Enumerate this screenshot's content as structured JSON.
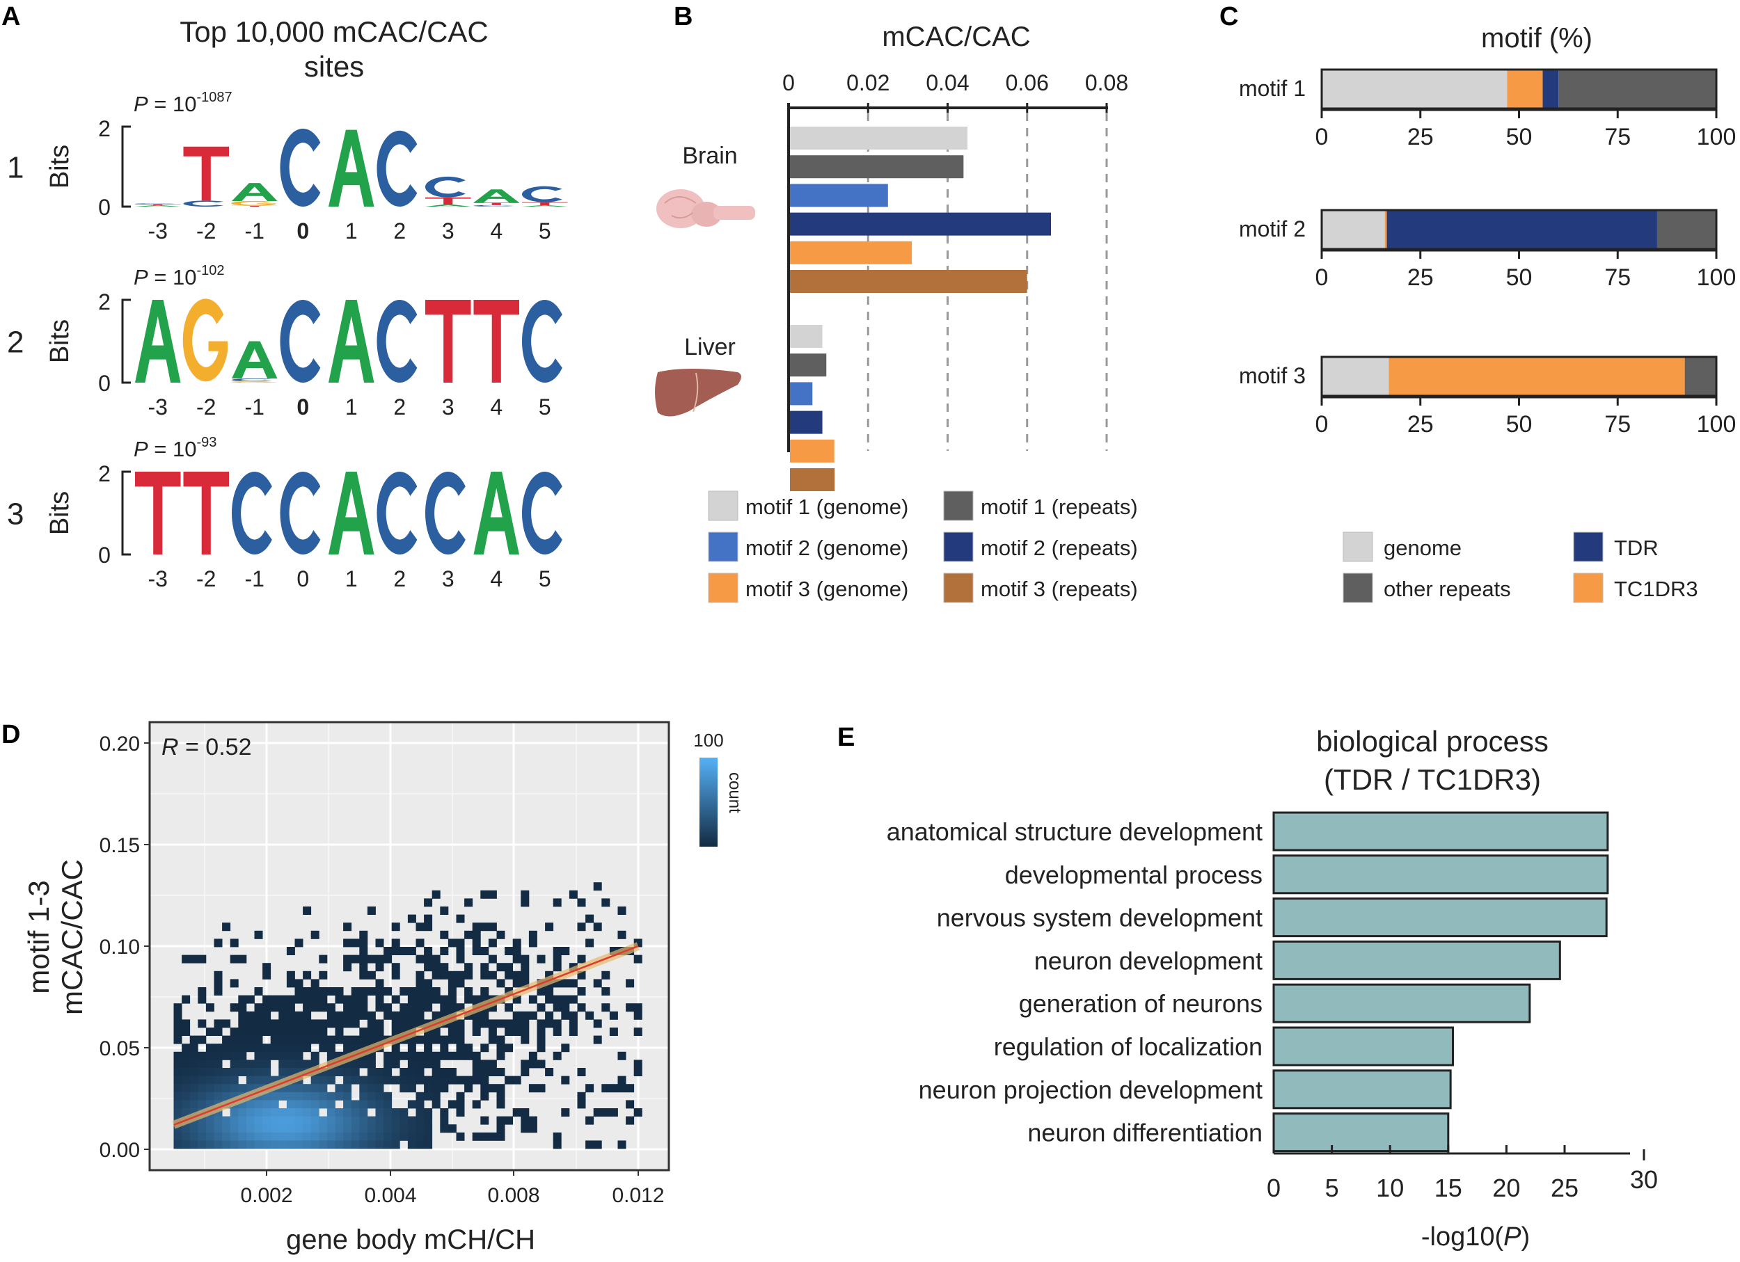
{
  "panel_labels": {
    "A": "A",
    "B": "B",
    "C": "C",
    "D": "D",
    "E": "E"
  },
  "colors": {
    "A": "#22a24a",
    "C": "#2b5fa0",
    "G": "#f2ae2c",
    "T": "#d92a3a",
    "motif1_genome": "#d3d3d3",
    "motif1_repeats": "#5f5f5f",
    "motif2_genome": "#4472c4",
    "motif2_repeats": "#233b7d",
    "motif3_genome": "#f79a46",
    "motif3_repeats": "#b2703a",
    "genome": "#d3d3d3",
    "other_repeats": "#5f5f5f",
    "TDR": "#233b7d",
    "TC1DR3": "#f79a46",
    "go_bar": "#91babd",
    "heat_low": "#132b43",
    "heat_high": "#56b1f7",
    "fit_line": "#e03a2f",
    "fit_band": "#e8b86a"
  },
  "chart_data": [
    {
      "panel": "A",
      "type": "sequence-logo",
      "title_line1": "Top 10,000 mCAC/CAC",
      "title_line2": "sites",
      "ylabel": "Bits",
      "yticks": [
        "0",
        "2"
      ],
      "ylim": [
        0,
        2
      ],
      "positions": [
        "-3",
        "-2",
        "-1",
        "0",
        "1",
        "2",
        "3",
        "4",
        "5"
      ],
      "motifs": [
        {
          "id": "1",
          "p_prefix": "P",
          "p_eq": " = 10",
          "p_exp": "-1087",
          "bold_zero": true,
          "stacks": [
            [
              [
                "A",
                0.03
              ],
              [
                "T",
                0.03
              ],
              [
                "C",
                0.02
              ]
            ],
            [
              [
                "C",
                0.15
              ]
            ],
            [
              [
                "T",
                0.02
              ],
              [
                "G",
                0.12
              ],
              [
                "A",
                0.45
              ]
            ],
            [
              [
                "C",
                1.95
              ]
            ],
            [
              [
                "A",
                1.92
              ]
            ],
            [
              [
                "C",
                1.9
              ]
            ],
            [
              [
                "A",
                0.05
              ],
              [
                "T",
                0.18
              ],
              [
                "C",
                0.52
              ]
            ],
            [
              [
                "C",
                0.04
              ],
              [
                "T",
                0.06
              ],
              [
                "A",
                0.33
              ]
            ],
            [
              [
                "A",
                0.03
              ],
              [
                "T",
                0.08
              ],
              [
                "C",
                0.4
              ]
            ]
          ],
          "top_T_at": 1,
          "top_T_bits": 1.35
        },
        {
          "id": "2",
          "p_prefix": "P",
          "p_eq": " = 10",
          "p_exp": "-102",
          "bold_zero": true,
          "stacks": [
            [
              [
                "A",
                2
              ]
            ],
            [
              [
                "G",
                2
              ]
            ],
            [
              [
                "G",
                0.03
              ],
              [
                "C",
                0.07
              ],
              [
                "A",
                0.9
              ]
            ],
            [
              [
                "C",
                2
              ]
            ],
            [
              [
                "A",
                2
              ]
            ],
            [
              [
                "C",
                2
              ]
            ],
            [
              [
                "T",
                2
              ]
            ],
            [
              [
                "T",
                2
              ]
            ],
            [
              [
                "C",
                2
              ]
            ]
          ]
        },
        {
          "id": "3",
          "p_prefix": "P",
          "p_eq": " = 10",
          "p_exp": "-93",
          "bold_zero": false,
          "stacks": [
            [
              [
                "T",
                2
              ]
            ],
            [
              [
                "T",
                2
              ]
            ],
            [
              [
                "C",
                2
              ]
            ],
            [
              [
                "C",
                2
              ]
            ],
            [
              [
                "A",
                2
              ]
            ],
            [
              [
                "C",
                2
              ]
            ],
            [
              [
                "C",
                2
              ]
            ],
            [
              [
                "A",
                2
              ]
            ],
            [
              [
                "C",
                2
              ]
            ]
          ]
        }
      ]
    },
    {
      "panel": "B",
      "type": "bar",
      "title": "mCAC/CAC",
      "xticks": [
        "0",
        "0.02",
        "0.04",
        "0.06",
        "0.08"
      ],
      "xlim": [
        0,
        0.08
      ],
      "groups": [
        {
          "name": "Brain",
          "values": [
            0.045,
            0.044,
            0.025,
            0.066,
            0.031,
            0.06
          ]
        },
        {
          "name": "Liver",
          "values": [
            0.0085,
            0.0095,
            0.006,
            0.0085,
            0.0115,
            0.0116
          ]
        }
      ],
      "series": [
        {
          "name": "motif 1 (genome)",
          "color_key": "motif1_genome"
        },
        {
          "name": "motif 1 (repeats)",
          "color_key": "motif1_repeats"
        },
        {
          "name": "motif 2 (genome)",
          "color_key": "motif2_genome"
        },
        {
          "name": "motif 2 (repeats)",
          "color_key": "motif2_repeats"
        },
        {
          "name": "motif 3 (genome)",
          "color_key": "motif3_genome"
        },
        {
          "name": "motif 3 (repeats)",
          "color_key": "motif3_repeats"
        }
      ],
      "grid": "dashed vertical",
      "legend_placement": "bottom"
    },
    {
      "panel": "C",
      "type": "bar",
      "stacked": true,
      "title": "motif (%)",
      "categories": [
        "motif 1",
        "motif 2",
        "motif 3"
      ],
      "xticks": [
        "0",
        "25",
        "50",
        "75",
        "100"
      ],
      "xlim": [
        0,
        100
      ],
      "segments": [
        [
          [
            "genome",
            47
          ],
          [
            "TC1DR3",
            9
          ],
          [
            "TDR",
            4
          ],
          [
            "other_repeats",
            40
          ]
        ],
        [
          [
            "genome",
            16
          ],
          [
            "TC1DR3",
            0.5
          ],
          [
            "TDR",
            68.5
          ],
          [
            "other_repeats",
            15
          ]
        ],
        [
          [
            "genome",
            17
          ],
          [
            "TC1DR3",
            75
          ],
          [
            "other_repeats",
            8
          ]
        ]
      ],
      "legend": [
        {
          "key": "genome",
          "label": "genome"
        },
        {
          "key": "TDR",
          "label": "TDR"
        },
        {
          "key": "other_repeats",
          "label": "other repeats"
        },
        {
          "key": "TC1DR3",
          "label": "TC1DR3"
        }
      ],
      "legend_placement": "bottom"
    },
    {
      "panel": "D",
      "type": "heatmap",
      "annotation_R": "R",
      "annotation_value": " = 0.52",
      "xlabel": "gene body mCH/CH",
      "ylabel_line1": "motif 1-3",
      "ylabel_line2": "mCAC/CAC",
      "xticks": [
        "0.002",
        "0.004",
        "0.008",
        "0.012"
      ],
      "xtick_values": [
        0.002,
        0.004,
        0.008,
        0.012
      ],
      "yticks": [
        "0.00",
        "0.05",
        "0.10",
        "0.15",
        "0.20"
      ],
      "ylim": [
        -0.005,
        0.21
      ],
      "density_peak": {
        "x": 0.0022,
        "y": 0.015
      },
      "regression": {
        "x": [
          0.0005,
          0.012
        ],
        "y": [
          0.012,
          0.1
        ]
      },
      "colorbar": {
        "max_label": "100",
        "label": "count"
      }
    },
    {
      "panel": "E",
      "type": "bar",
      "orientation": "horizontal",
      "title_line1": "biological process",
      "title_line2": "(TDR / TC1DR3)",
      "categories": [
        "anatomical structure development",
        "developmental process",
        "nervous system development",
        "neuron development",
        "generation of neurons",
        "regulation of localization",
        "neuron projection development",
        "neuron differentiation"
      ],
      "values": [
        28.7,
        28.7,
        28.6,
        24.6,
        22.0,
        15.4,
        15.2,
        15.0
      ],
      "xticks": [
        "0",
        "5",
        "10",
        "15",
        "20",
        "25"
      ],
      "xtick_extra": "30",
      "xlim": [
        0,
        30
      ],
      "xlabel_pre": "-log10(",
      "xlabel_italic": "P",
      "xlabel_post": ")"
    }
  ]
}
